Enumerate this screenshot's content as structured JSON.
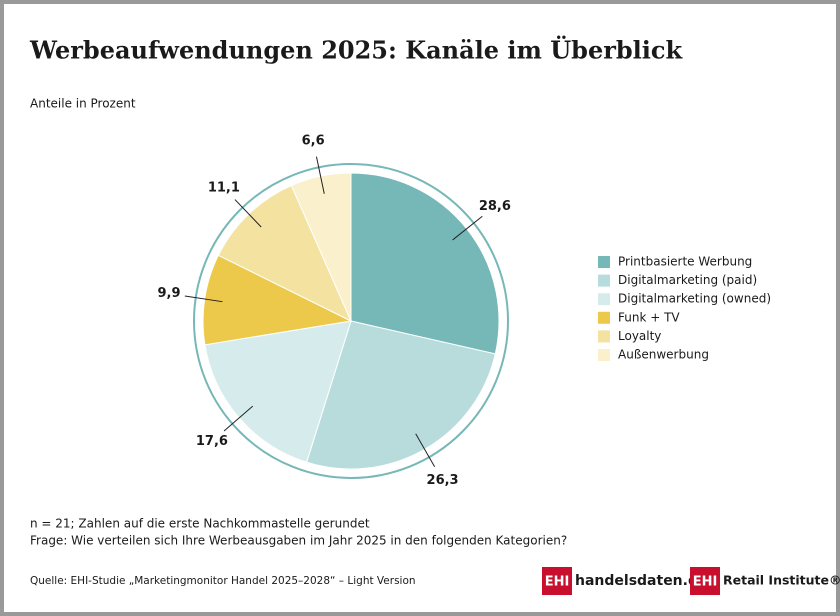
{
  "chart_data": {
    "type": "pie",
    "title": "Werbeaufwendungen 2025: Kanäle im Überblick",
    "subtitle": "Anteile in Prozent",
    "categories": [
      "Printbasierte Werbung",
      "Digitalmarketing (paid)",
      "Digitalmarketing (owned)",
      "Funk + TV",
      "Loyalty",
      "Außenwerbung"
    ],
    "values": [
      28.6,
      26.3,
      17.6,
      9.9,
      11.1,
      6.6
    ],
    "value_labels": [
      "28,6",
      "26,3",
      "17,6",
      "9,9",
      "11,1",
      "6,6"
    ],
    "colors": [
      "#76b8b7",
      "#b8dcdc",
      "#d6ecec",
      "#ecc94b",
      "#f4e2a0",
      "#faf0cc"
    ],
    "notes": [
      "n = 21; Zahlen auf die erste Nachkommastelle gerundet",
      "Frage: Wie verteilen sich Ihre Werbeausgaben im Jahr 2025 in den folgenden Kategorien?"
    ],
    "source": "Quelle: EHI-Studie „Marketingmonitor Handel 2025–2028“ – Light Version",
    "logos": [
      {
        "mark": "EHI",
        "text": "handelsdaten.de"
      },
      {
        "mark": "EHI",
        "text": "Retail Institute®"
      }
    ]
  }
}
